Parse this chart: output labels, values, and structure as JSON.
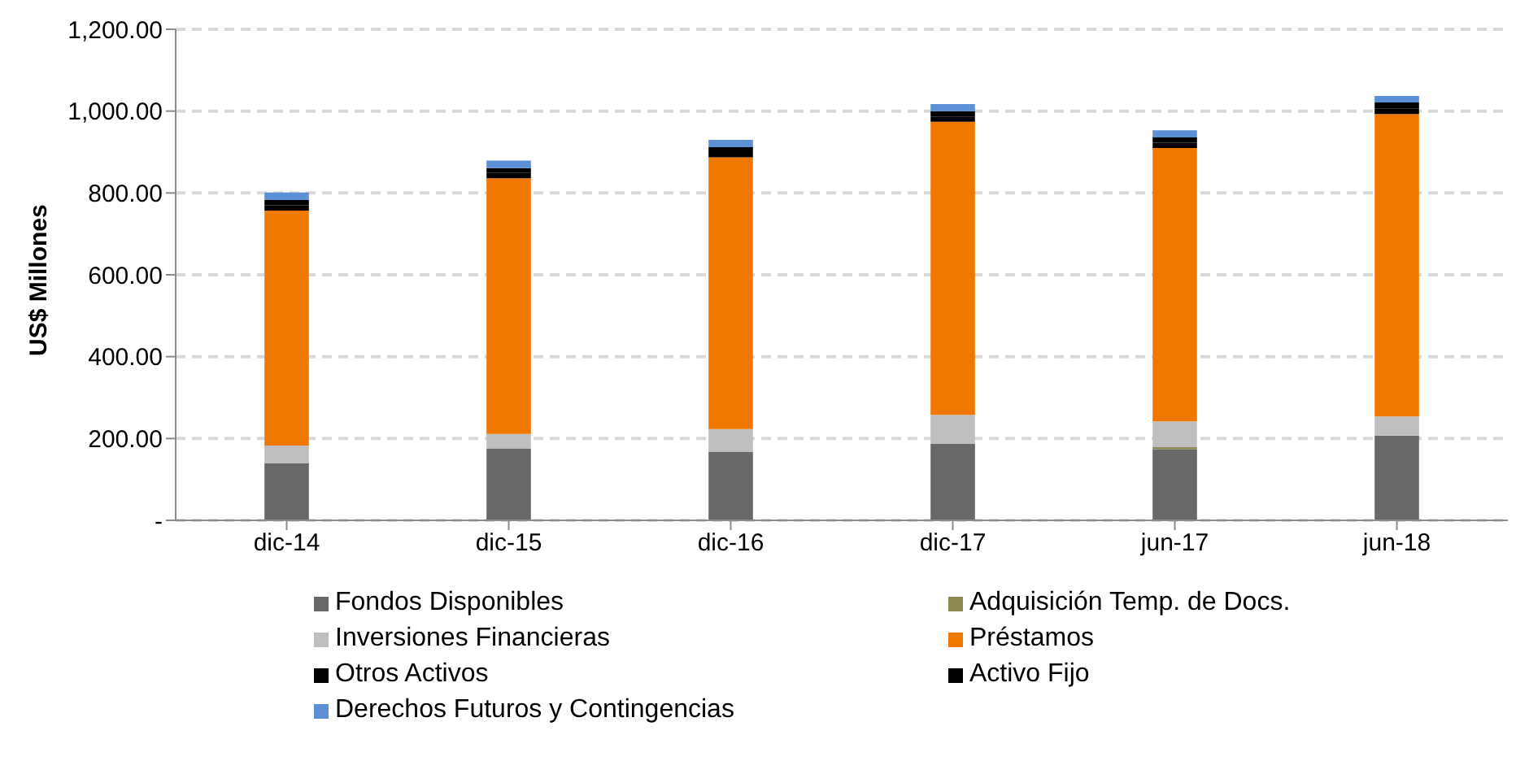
{
  "chart_data": {
    "type": "bar",
    "stacked": true,
    "ylabel": "US$ Millones",
    "categories": [
      "dic-14",
      "dic-15",
      "dic-16",
      "dic-17",
      "jun-17",
      "jun-18"
    ],
    "series": [
      {
        "name": "Fondos Disponibles",
        "color": "#686868",
        "values": [
          140,
          176,
          168,
          187,
          174,
          207
        ]
      },
      {
        "name": "Adquisición Temp. de Docs.",
        "color": "#8c8a50",
        "values": [
          0,
          0,
          0,
          0,
          5,
          0
        ]
      },
      {
        "name": "Inversiones Financieras",
        "color": "#bfbfbf",
        "values": [
          43,
          35,
          55,
          71,
          63,
          47
        ]
      },
      {
        "name": "Préstamos",
        "color": "#f07800",
        "values": [
          574,
          625,
          664,
          716,
          668,
          739
        ]
      },
      {
        "name": "Otros Activos",
        "color": "#000000",
        "values": [
          13,
          13,
          13,
          13,
          13,
          14
        ]
      },
      {
        "name": "Activo Fijo",
        "color": "#000000",
        "values": [
          13,
          12,
          12,
          13,
          13,
          14
        ]
      },
      {
        "name": "Derechos Futuros y Contingencias",
        "color": "#5b8fd6",
        "values": [
          18,
          18,
          18,
          17,
          17,
          16
        ]
      }
    ],
    "ylim": [
      0,
      1200
    ],
    "yticks": [
      {
        "value": 0,
        "label": "-"
      },
      {
        "value": 200,
        "label": "200.00"
      },
      {
        "value": 400,
        "label": "400.00"
      },
      {
        "value": 600,
        "label": "600.00"
      },
      {
        "value": 800,
        "label": "800.00"
      },
      {
        "value": 1000,
        "label": "1,000.00"
      },
      {
        "value": 1200,
        "label": "1,200.00"
      }
    ],
    "grid": "y",
    "legend": "bottom"
  }
}
